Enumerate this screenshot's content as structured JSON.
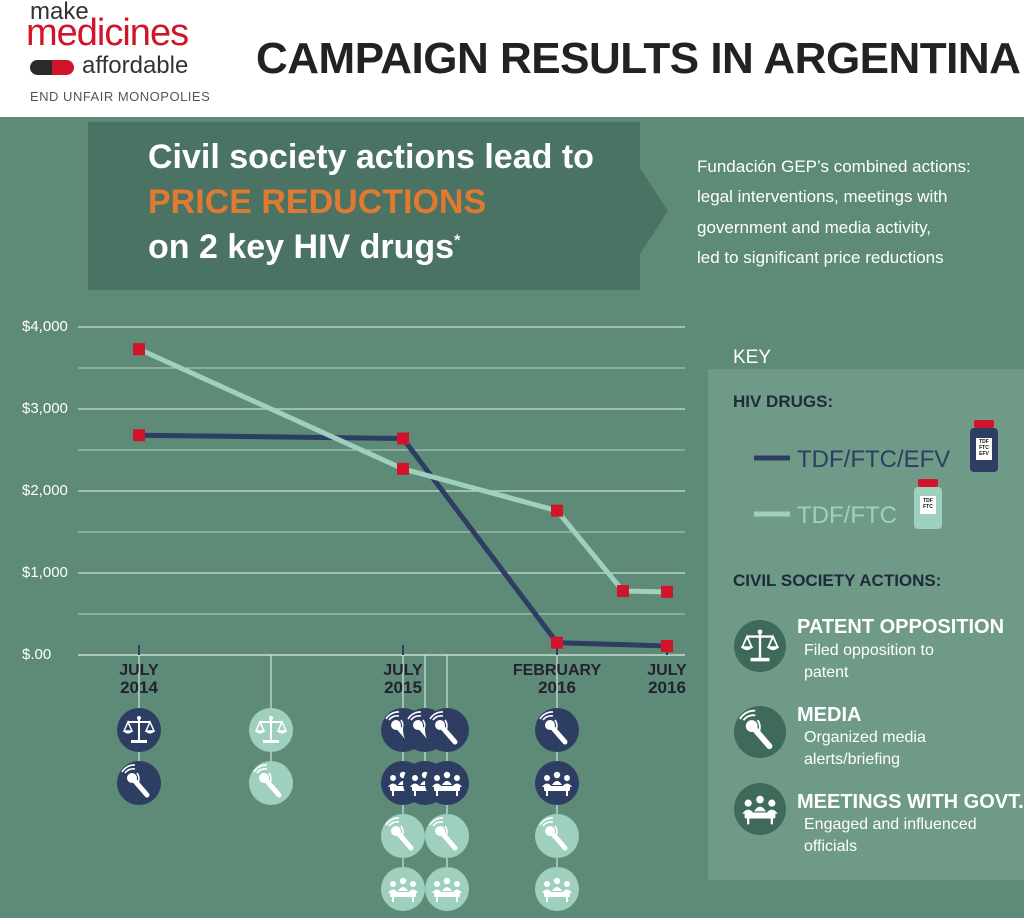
{
  "header": {
    "logo_make": "make",
    "logo_medicines": "medicines",
    "logo_affordable": "affordable",
    "logo_tagline": "END UNFAIR MONOPOLIES",
    "title": "CAMPAIGN RESULTS IN ARGENTINA"
  },
  "banner": {
    "line1": "Civil society actions lead to",
    "line2": "PRICE REDUCTIONS",
    "line3": "on 2 key HIV drugs",
    "asterisk": "*"
  },
  "intro": {
    "lines": [
      "Fundación GEP’s combined actions:",
      "legal interventions, meetings with",
      "government and media activity,",
      "led to significant price reductions"
    ]
  },
  "colors": {
    "background": "#5e8a78",
    "dark_series": "#2e3e63",
    "light_series": "#9fcfbd",
    "marker": "#d2142a",
    "accent": "#e07a30"
  },
  "chart_data": {
    "type": "line",
    "title": "",
    "xlabel": "",
    "ylabel": "",
    "ylim": [
      0,
      4000
    ],
    "y_ticks": [
      {
        "value": 0,
        "label": "$.00"
      },
      {
        "value": 1000,
        "label": "$1,000"
      },
      {
        "value": 2000,
        "label": "$2,000"
      },
      {
        "value": 3000,
        "label": "$3,000"
      },
      {
        "value": 4000,
        "label": "$4,000"
      }
    ],
    "grid": true,
    "x_ticks": [
      {
        "x": "2014-07",
        "line1": "JULY",
        "line2": "2014"
      },
      {
        "x": "2015-07",
        "line1": "JULY",
        "line2": "2015"
      },
      {
        "x": "2016-02",
        "line1": "FEBRUARY",
        "line2": "2016"
      },
      {
        "x": "2016-07",
        "line1": "JULY",
        "line2": "2016"
      }
    ],
    "series": [
      {
        "name": "TDF/FTC/EFV",
        "color": "#2e3e63",
        "points": [
          {
            "x": "2014-07",
            "y": 2680
          },
          {
            "x": "2015-07",
            "y": 2640
          },
          {
            "x": "2016-02",
            "y": 150
          },
          {
            "x": "2016-07",
            "y": 110
          }
        ]
      },
      {
        "name": "TDF/FTC",
        "color": "#9fcfbd",
        "points": [
          {
            "x": "2014-07",
            "y": 3730
          },
          {
            "x": "2015-07",
            "y": 2270
          },
          {
            "x": "2016-02",
            "y": 1760
          },
          {
            "x": "2016-05",
            "y": 780
          },
          {
            "x": "2016-07",
            "y": 770
          }
        ]
      }
    ],
    "actions": [
      {
        "x": "2014-07",
        "items": [
          {
            "type": "patent",
            "drug": "TDF/FTC/EFV"
          },
          {
            "type": "media",
            "drug": "TDF/FTC/EFV"
          }
        ]
      },
      {
        "x": "2015-01",
        "items": [
          {
            "type": "patent",
            "drug": "TDF/FTC"
          },
          {
            "type": "media",
            "drug": "TDF/FTC"
          }
        ]
      },
      {
        "x": "2015-07",
        "items": [
          {
            "type": "media",
            "drug": "TDF/FTC/EFV"
          },
          {
            "type": "meeting",
            "drug": "TDF/FTC/EFV"
          },
          {
            "type": "media",
            "drug": "TDF/FTC"
          },
          {
            "type": "meeting",
            "drug": "TDF/FTC"
          }
        ]
      },
      {
        "x": "2015-08",
        "items": [
          {
            "type": "media",
            "drug": "TDF/FTC/EFV"
          },
          {
            "type": "meeting",
            "drug": "TDF/FTC/EFV"
          }
        ]
      },
      {
        "x": "2015-09",
        "items": [
          {
            "type": "media",
            "drug": "TDF/FTC/EFV"
          },
          {
            "type": "meeting",
            "drug": "TDF/FTC/EFV"
          },
          {
            "type": "media",
            "drug": "TDF/FTC"
          },
          {
            "type": "meeting",
            "drug": "TDF/FTC"
          }
        ]
      },
      {
        "x": "2016-02",
        "items": [
          {
            "type": "media",
            "drug": "TDF/FTC/EFV"
          },
          {
            "type": "meeting",
            "drug": "TDF/FTC/EFV"
          },
          {
            "type": "media",
            "drug": "TDF/FTC"
          },
          {
            "type": "meeting",
            "drug": "TDF/FTC"
          }
        ]
      }
    ]
  },
  "key": {
    "title": "KEY",
    "drugs_heading": "HIV DRUGS:",
    "drug1": "TDF/FTC/EFV",
    "drug2": "TDF/FTC",
    "bottle1_label": [
      "TDF",
      "FTC",
      "EFV"
    ],
    "bottle2_label": [
      "TDF",
      "FTC"
    ],
    "actions_heading": "CIVIL SOCIETY ACTIONS:",
    "actions": [
      {
        "title": "PATENT OPPOSITION",
        "desc1": "Filed opposition to",
        "desc2": "patent",
        "icon": "scales-icon"
      },
      {
        "title": "MEDIA",
        "desc1": "Organized media",
        "desc2": "alerts/briefing",
        "icon": "microphone-icon"
      },
      {
        "title": "MEETINGS WITH GOVT.",
        "desc1": "Engaged and influenced",
        "desc2": "officials",
        "icon": "meeting-icon"
      }
    ]
  }
}
